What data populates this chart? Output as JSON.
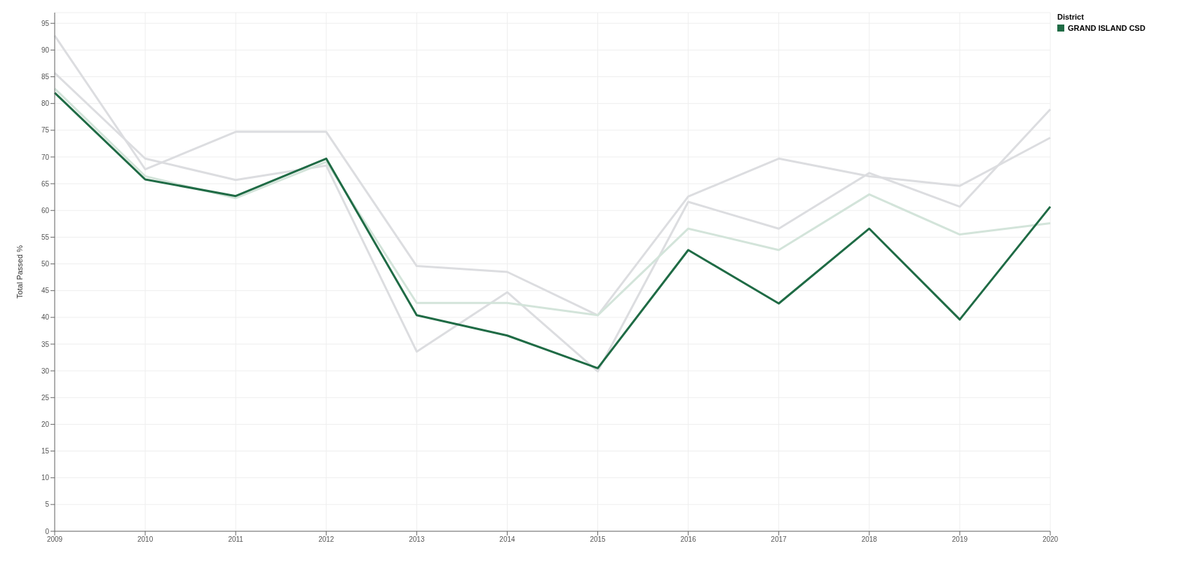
{
  "chart_data": {
    "type": "line",
    "ylabel": "Total Passed %",
    "legend_title": "District",
    "categories": [
      "2009",
      "2010",
      "2011",
      "2012",
      "2013",
      "2014",
      "2015",
      "2016",
      "2017",
      "2018",
      "2019",
      "2020"
    ],
    "series": [
      {
        "color": "#dcdde0",
        "values": [
          92.7,
          67.7,
          74.7,
          74.7,
          49.6,
          48.5,
          40.4,
          62.6,
          69.7,
          66.4,
          64.6,
          73.6
        ]
      },
      {
        "color": "#dcdde0",
        "values": [
          85.7,
          69.7,
          65.7,
          68.4,
          33.6,
          44.7,
          29.9,
          61.6,
          56.6,
          67.0,
          60.7,
          78.9
        ]
      },
      {
        "color": "#d3e4da",
        "values": [
          82.8,
          66.4,
          62.3,
          69.1,
          42.7,
          42.7,
          40.4,
          56.6,
          52.6,
          63.0,
          55.5,
          57.6
        ]
      },
      {
        "name": "GRAND ISLAND CSD",
        "color": "#1f6b45",
        "values": [
          82.0,
          65.8,
          62.7,
          69.7,
          40.4,
          36.6,
          30.5,
          52.6,
          42.6,
          56.6,
          39.6,
          60.7
        ]
      }
    ],
    "ylim": [
      0,
      97
    ],
    "yticks": [
      0,
      5,
      10,
      15,
      20,
      25,
      30,
      35,
      40,
      45,
      50,
      55,
      60,
      65,
      70,
      75,
      80,
      85,
      90,
      95
    ],
    "grid": true,
    "legend": "top right",
    "marker": "none",
    "line_style": "solid"
  }
}
